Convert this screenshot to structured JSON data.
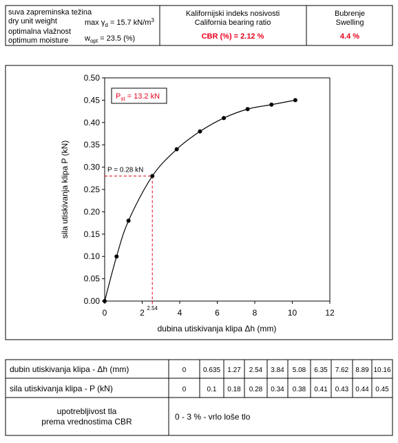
{
  "header": {
    "left": {
      "line1": "suva zapreminska težina",
      "line2": "dry unit weight",
      "gamma": [
        "max γ",
        "d",
        " = 15.7 kN/m",
        "3"
      ],
      "line3": "optimalna vlažnost",
      "line4": "optimum moisture",
      "wopt": [
        "w",
        "opt",
        " = 23.5 (%)"
      ]
    },
    "middle": {
      "line1": "Kalifornijski indeks nosivosti",
      "line2": "California bearing ratio",
      "result": "CBR (%) = 2.12 %"
    },
    "right": {
      "line1": "Bubrenje",
      "line2": "Swelling",
      "result": "4.4 %"
    }
  },
  "chart_data": {
    "type": "line",
    "x_label": "dubina utiskivanja klipa Δh (mm)",
    "y_label": "sila utiskivanja klipa  P (kN)",
    "x": [
      0,
      0.635,
      1.27,
      2.54,
      3.84,
      5.08,
      6.35,
      7.62,
      8.89,
      10.16
    ],
    "series": [
      {
        "color": "#000000",
        "values": [
          0,
          0.1,
          0.18,
          0.28,
          0.34,
          0.38,
          0.41,
          0.43,
          0.44,
          0.45
        ]
      }
    ],
    "xlim": [
      0,
      12
    ],
    "xticks": [
      0,
      2,
      4,
      6,
      8,
      10,
      12
    ],
    "ylim": [
      0,
      0.5
    ],
    "yticks": [
      {
        "value": 0,
        "label": "0.00"
      },
      0.05,
      {
        "value": 0.1,
        "label": "0.10"
      },
      0.15,
      {
        "value": 0.2,
        "label": "0.20"
      },
      0.25,
      {
        "value": 0.3,
        "label": "0.30"
      },
      0.35,
      {
        "value": 0.4,
        "label": "0.40"
      },
      0.45,
      {
        "value": 0.5,
        "label": "0.50"
      }
    ],
    "grid": false,
    "annotation_color": "#e8001c",
    "pst": [
      "P",
      "st",
      " = 13.2 kN"
    ],
    "marker": {
      "text": "P = 0.28 kN",
      "x": 2.54,
      "y": 0.28
    }
  },
  "table": {
    "row1_label": "dubin utiskivanja klipa - Δh (mm)",
    "row2_label": "sila utiskivanja klipa - P (kN)",
    "row3_label": [
      "upotrebljivost tla",
      "prema vrednostima CBR"
    ],
    "row3_value": "0 - 3 % - vrlo loše tlo"
  }
}
